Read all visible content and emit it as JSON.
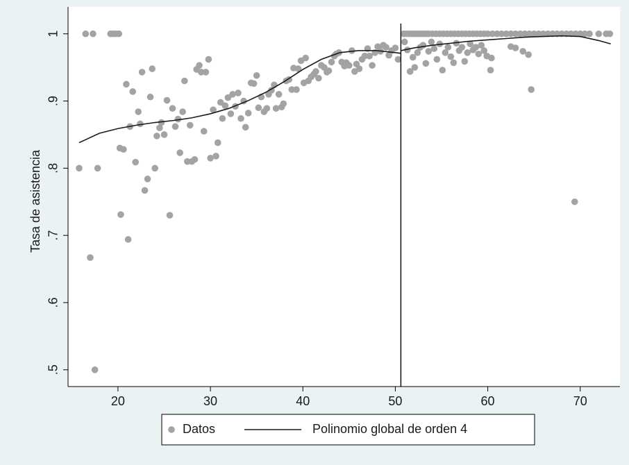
{
  "chart_data": {
    "type": "scatter",
    "ylabel": "Tasa de asistencia",
    "xlim": [
      14.6,
      74.3
    ],
    "ylim": [
      0.475,
      1.04
    ],
    "xticks": [
      20,
      30,
      40,
      50,
      60,
      70
    ],
    "yticks": [
      {
        "value": 0.5,
        "label": ".5"
      },
      {
        "value": 0.6,
        "label": ".6"
      },
      {
        "value": 0.7,
        "label": ".7"
      },
      {
        "value": 0.8,
        "label": ".8"
      },
      {
        "value": 0.9,
        "label": ".9"
      },
      1
    ],
    "vline": 50.6,
    "legend_position": "bottom",
    "series": [
      {
        "name": "Datos",
        "type": "scatter",
        "color": "#a3a3a3",
        "x": [
          15.8,
          16.5,
          17.0,
          17.3,
          17.5,
          17.8,
          19.2,
          19.5,
          19.8,
          20.1,
          20.2,
          20.3,
          20.6,
          20.9,
          21.1,
          21.3,
          21.6,
          21.9,
          22.2,
          22.4,
          22.6,
          22.9,
          23.2,
          23.5,
          23.7,
          24.0,
          24.2,
          24.5,
          24.7,
          25.0,
          25.3,
          25.6,
          25.9,
          26.2,
          26.5,
          26.7,
          27.0,
          27.2,
          27.5,
          27.8,
          28.0,
          28.3,
          28.5,
          28.8,
          29.0,
          29.3,
          29.5,
          29.8,
          30.0,
          30.3,
          30.6,
          30.8,
          31.1,
          31.3,
          31.6,
          31.9,
          32.2,
          32.4,
          32.7,
          33.0,
          33.3,
          33.6,
          33.8,
          34.1,
          34.4,
          34.7,
          35.0,
          35.2,
          35.5,
          35.8,
          36.1,
          36.3,
          36.6,
          36.9,
          37.1,
          37.4,
          37.7,
          37.9,
          38.2,
          38.5,
          38.8,
          39.0,
          39.3,
          39.5,
          39.8,
          40.1,
          40.3,
          40.6,
          40.9,
          41.2,
          41.4,
          41.7,
          42.0,
          42.3,
          42.6,
          42.8,
          43.1,
          43.4,
          43.6,
          43.9,
          44.2,
          44.5,
          44.7,
          45.0,
          45.3,
          45.6,
          45.8,
          46.1,
          46.4,
          46.7,
          47.0,
          47.2,
          47.5,
          47.8,
          48.1,
          48.4,
          48.7,
          49.0,
          49.3,
          49.6,
          50.0,
          50.3,
          50.9,
          51.2,
          51.5,
          51.8,
          52.1,
          52.4,
          52.7,
          53.0,
          53.3,
          53.6,
          54.0,
          54.4,
          54.8,
          55.2,
          55.6,
          56.0,
          56.4,
          56.8,
          57.2,
          57.6,
          58.0,
          58.4,
          58.8,
          59.2,
          59.6,
          60.0,
          60.5,
          61.0,
          61.5,
          62.0,
          62.5,
          63.0,
          63.5,
          64.0,
          64.5,
          65.0,
          65.5,
          66.0,
          66.5,
          67.0,
          67.5,
          68.0,
          68.5,
          69.0,
          69.5,
          70.0,
          70.5,
          71.0,
          72.0,
          72.8,
          73.2,
          51.0,
          51.3,
          51.6,
          51.9,
          52.1,
          52.4,
          52.7,
          53.0,
          53.3,
          53.6,
          53.9,
          54.2,
          54.5,
          54.8,
          55.1,
          55.4,
          55.7,
          56.0,
          56.3,
          56.6,
          56.9,
          57.2,
          57.5,
          57.8,
          58.1,
          58.4,
          58.7,
          59.0,
          59.3,
          59.6,
          59.9,
          60.3,
          60.4,
          62.5,
          63.0,
          63.8,
          64.4,
          64.7,
          69.4
        ],
        "values": [
          0.8,
          1,
          0.667,
          1,
          0.5,
          0.8,
          1,
          1,
          1,
          1,
          0.83,
          0.731,
          0.828,
          0.925,
          0.694,
          0.862,
          0.914,
          0.809,
          0.884,
          0.866,
          0.943,
          0.767,
          0.784,
          0.906,
          0.948,
          0.8,
          0.848,
          0.86,
          0.868,
          0.85,
          0.901,
          0.73,
          0.889,
          0.862,
          0.873,
          0.823,
          0.884,
          0.93,
          0.81,
          0.864,
          0.81,
          0.813,
          0.947,
          0.953,
          0.943,
          0.855,
          0.943,
          0.962,
          0.815,
          0.887,
          0.818,
          0.838,
          0.898,
          0.874,
          0.893,
          0.905,
          0.881,
          0.91,
          0.892,
          0.912,
          0.874,
          0.9,
          0.861,
          0.882,
          0.927,
          0.926,
          0.938,
          0.89,
          0.906,
          0.884,
          0.889,
          0.91,
          0.916,
          0.924,
          0.889,
          0.91,
          0.891,
          0.896,
          0.93,
          0.932,
          0.917,
          0.949,
          0.917,
          0.948,
          0.96,
          0.927,
          0.964,
          0.93,
          0.936,
          0.94,
          0.944,
          0.934,
          0.953,
          0.95,
          0.943,
          0.945,
          0.958,
          0.967,
          0.97,
          0.972,
          0.958,
          0.952,
          0.957,
          0.953,
          0.975,
          0.944,
          0.955,
          0.948,
          0.962,
          0.967,
          0.978,
          0.967,
          0.953,
          0.972,
          0.981,
          0.974,
          0.983,
          0.98,
          0.968,
          0.975,
          0.979,
          0.962,
          1,
          1,
          1,
          1,
          1,
          1,
          1,
          1,
          1,
          1,
          1,
          1,
          1,
          1,
          1,
          1,
          1,
          1,
          1,
          1,
          1,
          1,
          1,
          1,
          1,
          1,
          1,
          1,
          1,
          1,
          1,
          1,
          1,
          1,
          1,
          1,
          1,
          1,
          1,
          1,
          1,
          1,
          1,
          1,
          1,
          1,
          1,
          1,
          1,
          1,
          1,
          0.988,
          0.976,
          0.944,
          0.965,
          0.95,
          0.972,
          0.98,
          0.983,
          0.956,
          0.974,
          0.988,
          0.978,
          0.962,
          0.985,
          0.946,
          0.972,
          0.98,
          0.966,
          0.957,
          0.986,
          0.975,
          0.98,
          0.959,
          0.972,
          0.985,
          0.976,
          0.98,
          0.97,
          0.983,
          0.975,
          0.967,
          0.946,
          0.964,
          0.981,
          0.979,
          0.974,
          0.969,
          0.917,
          0.75
        ]
      },
      {
        "name": "Polinomio global de orden 4",
        "type": "line",
        "color": "#1a1a1a",
        "x": [
          15.8,
          18,
          20,
          22,
          24,
          26,
          28,
          30,
          32,
          34,
          36,
          38,
          40,
          42,
          44,
          46,
          48,
          50,
          50.6,
          null,
          50.6,
          52,
          54,
          56,
          58,
          60,
          62,
          64,
          66,
          68,
          70,
          72,
          73.3
        ],
        "values": [
          0.838,
          0.852,
          0.859,
          0.864,
          0.868,
          0.871,
          0.875,
          0.881,
          0.889,
          0.9,
          0.913,
          0.929,
          0.947,
          0.962,
          0.972,
          0.975,
          0.975,
          0.972,
          0.971,
          null,
          0.975,
          0.979,
          0.983,
          0.986,
          0.989,
          0.991,
          0.993,
          0.995,
          0.996,
          0.997,
          0.996,
          0.99,
          0.985
        ]
      }
    ]
  }
}
